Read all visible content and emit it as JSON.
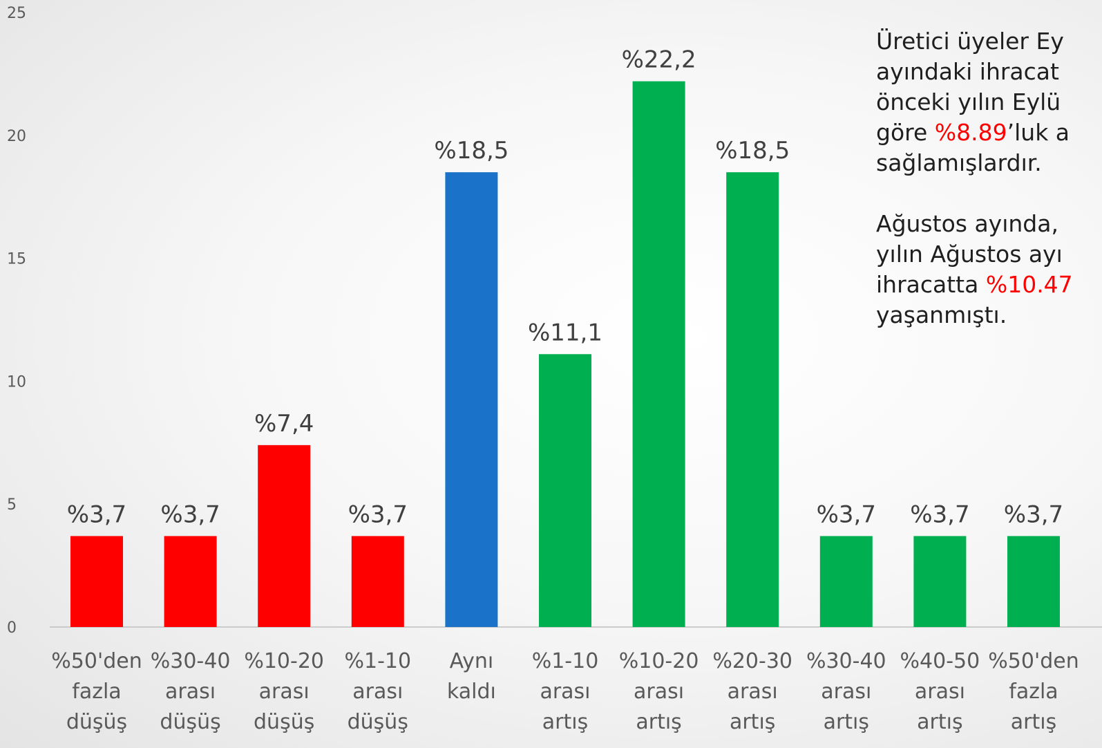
{
  "chart_data": {
    "type": "bar",
    "categories": [
      [
        "%50'den",
        "fazla",
        "düşüş"
      ],
      [
        "%30-40",
        "arası",
        "düşüş"
      ],
      [
        "%10-20",
        "arası",
        "düşüş"
      ],
      [
        "%1-10",
        "arası",
        "düşüş"
      ],
      [
        "Aynı",
        "kaldı"
      ],
      [
        "%1-10",
        "arası",
        "artış"
      ],
      [
        "%10-20",
        "arası",
        "artış"
      ],
      [
        "%20-30",
        "arası",
        "artış"
      ],
      [
        "%30-40",
        "arası",
        "artış"
      ],
      [
        "%40-50",
        "arası",
        "artış"
      ],
      [
        "%50'den",
        "fazla",
        "artış"
      ]
    ],
    "values": [
      3.7,
      3.7,
      7.4,
      3.7,
      18.5,
      11.1,
      22.2,
      18.5,
      3.7,
      3.7,
      3.7
    ],
    "data_labels": [
      "%3,7",
      "%3,7",
      "%7,4",
      "%3,7",
      "%18,5",
      "%11,1",
      "%22,2",
      "%18,5",
      "%3,7",
      "%3,7",
      "%3,7"
    ],
    "bar_colors": [
      "#ff0000",
      "#ff0000",
      "#ff0000",
      "#ff0000",
      "#1a73c8",
      "#00b050",
      "#00b050",
      "#00b050",
      "#00b050",
      "#00b050",
      "#00b050"
    ],
    "ylim": [
      0,
      25
    ],
    "yticks": [
      0,
      5,
      10,
      15,
      20,
      25
    ],
    "grid": false,
    "title": "",
    "xlabel": "",
    "ylabel": ""
  },
  "note": {
    "p1": {
      "line1": "Üretici üyeler Ey",
      "line2": "ayındaki ihracat",
      "line3": "önceki yılın Eylü",
      "line4_before": "göre ",
      "line4_highlight": "%8.89",
      "line4_after": "’luk a",
      "line5": "sağlamışlardır."
    },
    "p2": {
      "line1": "Ağustos ayında,",
      "line2": "yılın Ağustos ayı",
      "line3_before": "ihracatta ",
      "line3_highlight": "%10.47",
      "line4": "yaşanmıştı."
    },
    "highlight_color": "#ff0000"
  }
}
